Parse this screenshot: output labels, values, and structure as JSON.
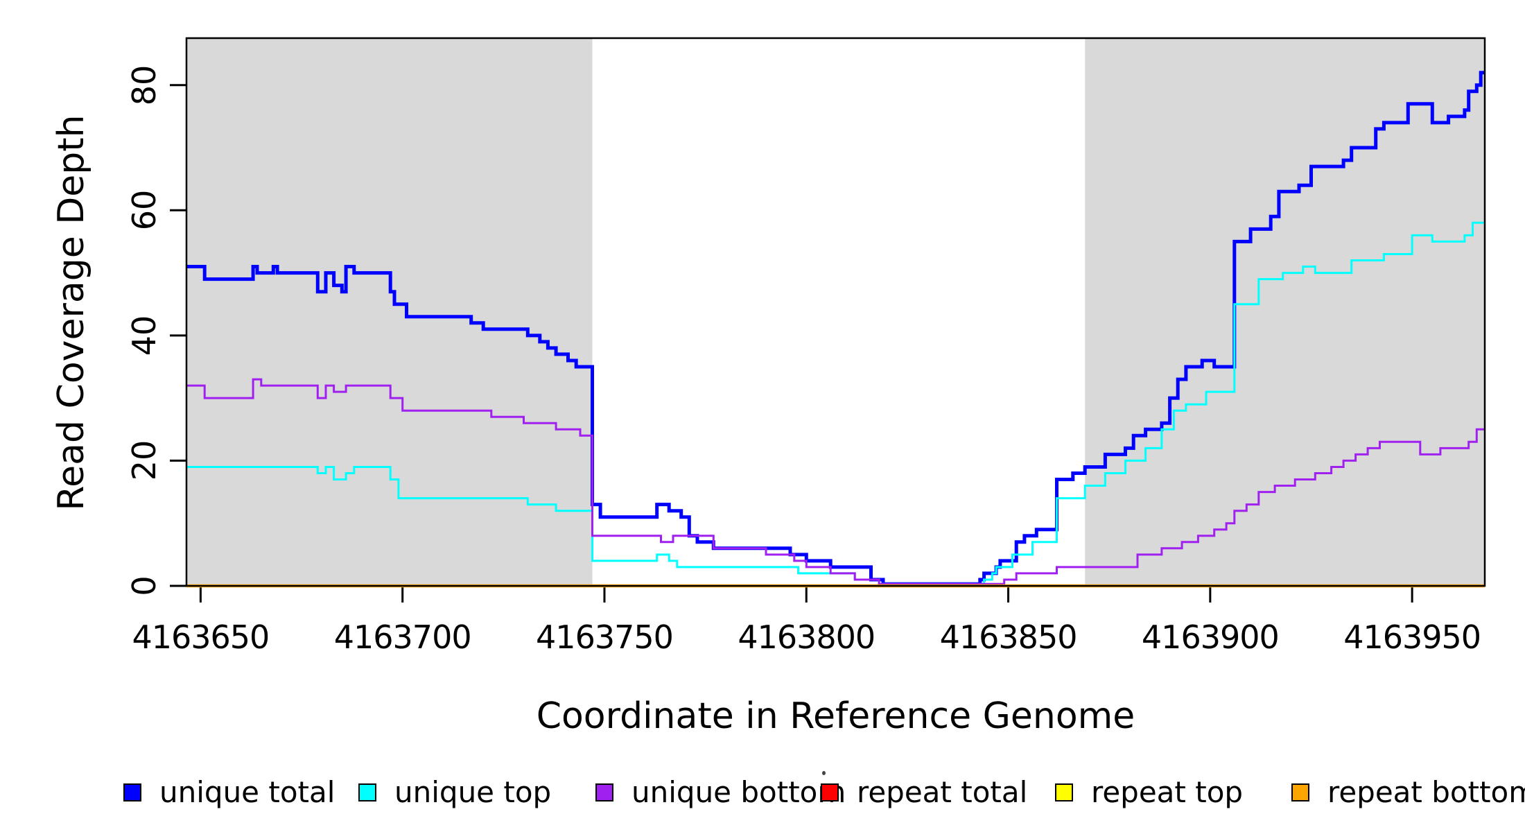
{
  "y_axis": {
    "title": "Read Coverage Depth",
    "ticks": [
      "0",
      "20",
      "40",
      "60",
      "80"
    ]
  },
  "x_axis": {
    "title": "Coordinate in Reference Genome",
    "ticks": [
      "4163650",
      "4163700",
      "4163750",
      "4163800",
      "4163850",
      "4163900",
      "4163950"
    ]
  },
  "legend": {
    "entries": [
      {
        "label": "unique total",
        "color": "#0000FF"
      },
      {
        "label": "unique top",
        "color": "#00FFFF"
      },
      {
        "label": "unique bottom",
        "color": "#A020F0"
      },
      {
        "label": "repeat total",
        "color": "#FF0000"
      },
      {
        "label": "repeat top",
        "color": "#FFFF00"
      },
      {
        "label": "repeat bottom",
        "color": "#FFA500"
      }
    ]
  },
  "stray_dot": ".",
  "colors": {
    "shaded_region": "#D9D9D9",
    "frame": "#000000",
    "background": "#FFFFFF"
  },
  "chart_data": {
    "type": "line",
    "subtype": "step-coverage",
    "title": "",
    "xlabel": "Coordinate in Reference Genome",
    "ylabel": "Read Coverage Depth",
    "xlim": [
      4163646.5,
      4163968
    ],
    "ylim": [
      0,
      87.5
    ],
    "x_ticks": [
      4163650,
      4163700,
      4163750,
      4163800,
      4163850,
      4163900,
      4163950
    ],
    "y_ticks": [
      0,
      20,
      40,
      60,
      80
    ],
    "grid": false,
    "legend_position": "bottom",
    "shaded_regions": [
      {
        "from": 4163646.5,
        "to": 4163747,
        "color": "#D9D9D9"
      },
      {
        "from": 4163869,
        "to": 4163968,
        "color": "#D9D9D9"
      }
    ],
    "series": [
      {
        "name": "unique total",
        "color": "#0000FF",
        "width": 5,
        "points": [
          [
            4163647,
            51
          ],
          [
            4163651,
            49
          ],
          [
            4163663,
            51
          ],
          [
            4163664,
            50
          ],
          [
            4163668,
            51
          ],
          [
            4163669,
            50
          ],
          [
            4163679,
            47
          ],
          [
            4163681,
            50
          ],
          [
            4163683,
            48
          ],
          [
            4163685,
            47
          ],
          [
            4163686,
            51
          ],
          [
            4163688,
            50
          ],
          [
            4163697,
            47
          ],
          [
            4163698,
            45
          ],
          [
            4163701,
            43
          ],
          [
            4163717,
            42
          ],
          [
            4163720,
            41
          ],
          [
            4163731,
            40
          ],
          [
            4163734,
            39
          ],
          [
            4163736,
            38
          ],
          [
            4163738,
            37
          ],
          [
            4163741,
            36
          ],
          [
            4163743,
            35
          ],
          [
            4163747,
            13
          ],
          [
            4163749,
            11
          ],
          [
            4163763,
            13
          ],
          [
            4163766,
            12
          ],
          [
            4163769,
            11
          ],
          [
            4163771,
            8
          ],
          [
            4163773,
            7
          ],
          [
            4163777,
            6
          ],
          [
            4163796,
            5
          ],
          [
            4163800,
            4
          ],
          [
            4163806,
            3
          ],
          [
            4163816,
            1
          ],
          [
            4163819,
            0.3
          ],
          [
            4163843,
            1
          ],
          [
            4163844,
            2
          ],
          [
            4163847,
            3
          ],
          [
            4163848,
            4
          ],
          [
            4163852,
            7
          ],
          [
            4163854,
            8
          ],
          [
            4163857,
            9
          ],
          [
            4163862,
            17
          ],
          [
            4163866,
            18
          ],
          [
            4163869,
            19
          ],
          [
            4163874,
            21
          ],
          [
            4163879,
            22
          ],
          [
            4163881,
            24
          ],
          [
            4163884,
            25
          ],
          [
            4163888,
            26
          ],
          [
            4163890,
            30
          ],
          [
            4163892,
            33
          ],
          [
            4163894,
            35
          ],
          [
            4163898,
            36
          ],
          [
            4163901,
            35
          ],
          [
            4163906,
            55
          ],
          [
            4163910,
            57
          ],
          [
            4163915,
            59
          ],
          [
            4163917,
            63
          ],
          [
            4163922,
            64
          ],
          [
            4163925,
            67
          ],
          [
            4163933,
            68
          ],
          [
            4163935,
            70
          ],
          [
            4163941,
            73
          ],
          [
            4163943,
            74
          ],
          [
            4163949,
            77
          ],
          [
            4163955,
            74
          ],
          [
            4163959,
            75
          ],
          [
            4163963,
            76
          ],
          [
            4163964,
            79
          ],
          [
            4163966,
            80
          ],
          [
            4163967,
            82
          ]
        ]
      },
      {
        "name": "unique top",
        "color": "#00FFFF",
        "width": 3,
        "points": [
          [
            4163647,
            19
          ],
          [
            4163679,
            18
          ],
          [
            4163681,
            19
          ],
          [
            4163683,
            17
          ],
          [
            4163686,
            18
          ],
          [
            4163688,
            19
          ],
          [
            4163697,
            17
          ],
          [
            4163699,
            14
          ],
          [
            4163731,
            13
          ],
          [
            4163738,
            12
          ],
          [
            4163747,
            4
          ],
          [
            4163763,
            5
          ],
          [
            4163766,
            4
          ],
          [
            4163768,
            3
          ],
          [
            4163798,
            2
          ],
          [
            4163812,
            1
          ],
          [
            4163818,
            0.3
          ],
          [
            4163844,
            1
          ],
          [
            4163846,
            2
          ],
          [
            4163847,
            3
          ],
          [
            4163851,
            5
          ],
          [
            4163856,
            7
          ],
          [
            4163862,
            14
          ],
          [
            4163869,
            16
          ],
          [
            4163874,
            18
          ],
          [
            4163879,
            20
          ],
          [
            4163884,
            22
          ],
          [
            4163888,
            25
          ],
          [
            4163891,
            28
          ],
          [
            4163894,
            29
          ],
          [
            4163899,
            31
          ],
          [
            4163906,
            45
          ],
          [
            4163912,
            49
          ],
          [
            4163918,
            50
          ],
          [
            4163923,
            51
          ],
          [
            4163926,
            50
          ],
          [
            4163935,
            52
          ],
          [
            4163943,
            53
          ],
          [
            4163950,
            56
          ],
          [
            4163955,
            55
          ],
          [
            4163963,
            56
          ],
          [
            4163965,
            58
          ]
        ]
      },
      {
        "name": "unique bottom",
        "color": "#A020F0",
        "width": 3,
        "points": [
          [
            4163647,
            32
          ],
          [
            4163651,
            30
          ],
          [
            4163663,
            33
          ],
          [
            4163665,
            32
          ],
          [
            4163679,
            30
          ],
          [
            4163681,
            32
          ],
          [
            4163683,
            31
          ],
          [
            4163686,
            32
          ],
          [
            4163697,
            30
          ],
          [
            4163700,
            28
          ],
          [
            4163722,
            27
          ],
          [
            4163730,
            26
          ],
          [
            4163738,
            25
          ],
          [
            4163744,
            24
          ],
          [
            4163747,
            8
          ],
          [
            4163764,
            7
          ],
          [
            4163767,
            8
          ],
          [
            4163777,
            6
          ],
          [
            4163790,
            5
          ],
          [
            4163797,
            4
          ],
          [
            4163800,
            3
          ],
          [
            4163806,
            2
          ],
          [
            4163812,
            1
          ],
          [
            4163818,
            0.3
          ],
          [
            4163849,
            1
          ],
          [
            4163852,
            2
          ],
          [
            4163862,
            3
          ],
          [
            4163882,
            5
          ],
          [
            4163888,
            6
          ],
          [
            4163893,
            7
          ],
          [
            4163897,
            8
          ],
          [
            4163901,
            9
          ],
          [
            4163904,
            10
          ],
          [
            4163906,
            12
          ],
          [
            4163909,
            13
          ],
          [
            4163912,
            15
          ],
          [
            4163916,
            16
          ],
          [
            4163921,
            17
          ],
          [
            4163926,
            18
          ],
          [
            4163930,
            19
          ],
          [
            4163933,
            20
          ],
          [
            4163936,
            21
          ],
          [
            4163939,
            22
          ],
          [
            4163942,
            23
          ],
          [
            4163952,
            21
          ],
          [
            4163957,
            22
          ],
          [
            4163964,
            23
          ],
          [
            4163966,
            25
          ]
        ]
      },
      {
        "name": "repeat total",
        "color": "#FF0000",
        "width": 3,
        "points": [
          [
            4163647,
            0
          ]
        ]
      },
      {
        "name": "repeat top",
        "color": "#FFFF00",
        "width": 3,
        "points": [
          [
            4163647,
            0
          ]
        ]
      },
      {
        "name": "repeat bottom",
        "color": "#FFA500",
        "width": 4.5,
        "points": [
          [
            4163647,
            0
          ]
        ]
      }
    ]
  }
}
